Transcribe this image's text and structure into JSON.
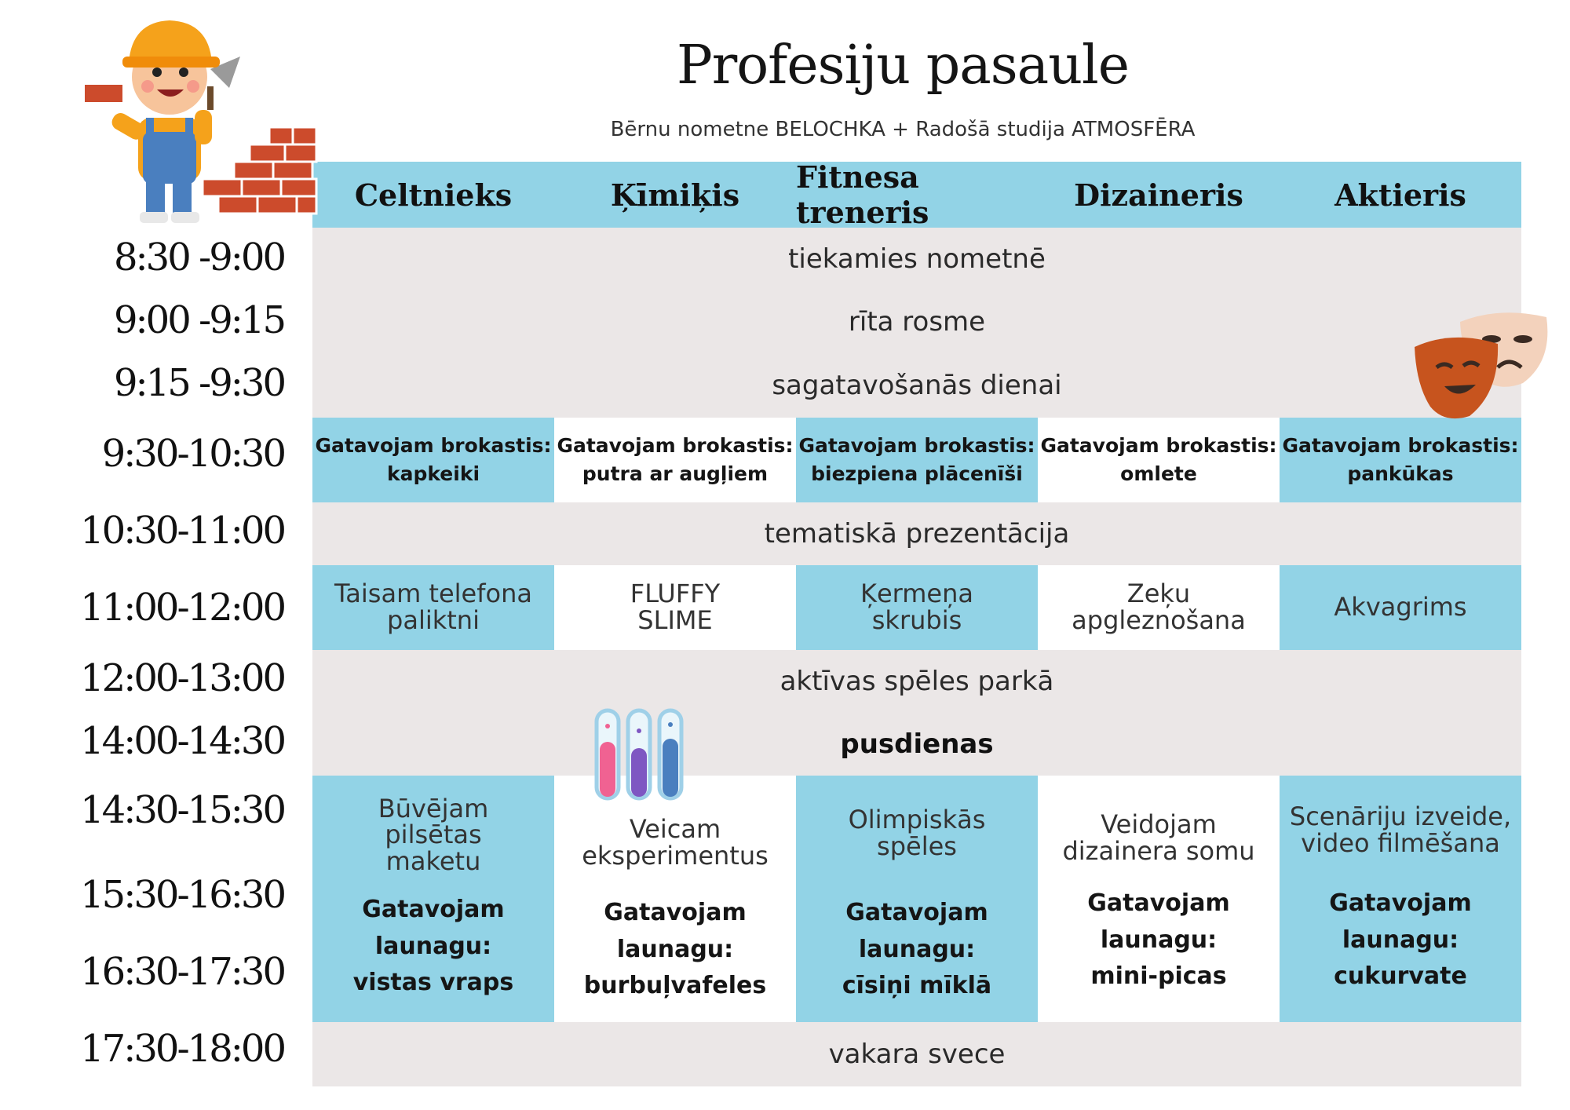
{
  "title": "Profesiju pasaule",
  "subtitle": "Bērnu nometne BELOCHKA + Radošā studija ATMOSFĒRA",
  "columns": [
    "Celtnieks",
    "Ķīmiķis",
    "Fitnesa treneris",
    "Dizaineris",
    "Aktieris"
  ],
  "times": [
    "8:30 -9:00",
    "9:00 -9:15",
    "9:15 -9:30",
    "9:30-10:30",
    "10:30-11:00",
    "11:00-12:00",
    "12:00-13:00",
    "14:00-14:30",
    "14:30-15:30",
    "15:30-16:30",
    "16:30-17:30",
    "17:30-18:00"
  ],
  "shared": {
    "meet": "tiekamies nometnē",
    "exercise": "rīta rosme",
    "prepare": "sagatavošanās dienai",
    "presentation": "tematiskā prezentācija",
    "games": "aktīvas spēles parkā",
    "lunch": "pusdienas",
    "candle": "vakara svece"
  },
  "breakfast": [
    {
      "l1": "Gatavojam brokastis:",
      "l2": "kapkeiki"
    },
    {
      "l1": "Gatavojam brokastis:",
      "l2": "putra ar augļiem"
    },
    {
      "l1": "Gatavojam brokastis:",
      "l2": "biezpiena plācenīši"
    },
    {
      "l1": "Gatavojam brokastis:",
      "l2": "omlete"
    },
    {
      "l1": "Gatavojam brokastis:",
      "l2": "pankūkas"
    }
  ],
  "morning_activity": [
    {
      "l1": "Taisam telefona",
      "l2": "paliktni"
    },
    {
      "l1": "FLUFFY",
      "l2": "SLIME"
    },
    {
      "l1": "Ķermeņa",
      "l2": "skrubis"
    },
    {
      "l1": "Zeķu",
      "l2": "apgleznošana"
    },
    {
      "l1": "Akvagrims",
      "l2": ""
    }
  ],
  "afternoon_activity": [
    {
      "l1": "Būvējam",
      "l2": "pilsētas",
      "l3": "maketu"
    },
    {
      "l1": "Veicam",
      "l2": "eksperimentus",
      "l3": ""
    },
    {
      "l1": "Olimpiskās",
      "l2": "spēles",
      "l3": ""
    },
    {
      "l1": "Veidojam",
      "l2": "dizainera somu",
      "l3": ""
    },
    {
      "l1": "Scenāriju izveide,",
      "l2": "video filmēšana",
      "l3": ""
    }
  ],
  "snack": [
    {
      "l1": "Gatavojam",
      "l2": "launagu:",
      "l3": "vistas vraps"
    },
    {
      "l1": "Gatavojam",
      "l2": "launagu:",
      "l3": "burbuļvafeles"
    },
    {
      "l1": "Gatavojam",
      "l2": "launagu:",
      "l3": "cīsiņi mīklā"
    },
    {
      "l1": "Gatavojam",
      "l2": "launagu:",
      "l3": "mini-picas"
    },
    {
      "l1": "Gatavojam",
      "l2": "launagu:",
      "l3": "cukurvate"
    }
  ],
  "colors": {
    "blue": "#92d3e6",
    "grey": "#ebe7e7",
    "white": "#ffffff"
  }
}
